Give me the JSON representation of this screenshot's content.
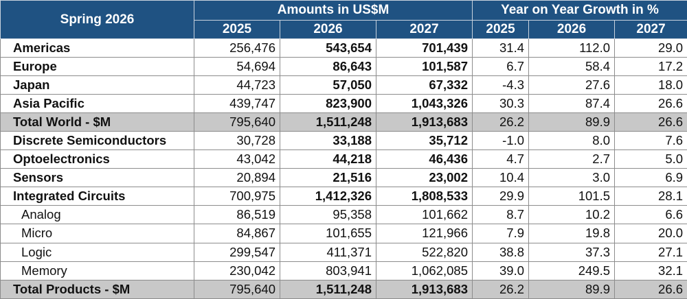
{
  "chart_data": {
    "type": "table",
    "title": "Spring 2026",
    "group_headers": {
      "amounts": "Amounts in US$M",
      "growth": "Year on Year Growth in %"
    },
    "columns": [
      "2025",
      "2026",
      "2027",
      "2025",
      "2026",
      "2027"
    ],
    "rows": [
      {
        "label": "Americas",
        "values": [
          "256,476",
          "543,654",
          "701,439",
          "31.4",
          "112.0",
          "29.0"
        ]
      },
      {
        "label": "Europe",
        "values": [
          "54,694",
          "86,643",
          "101,587",
          "6.7",
          "58.4",
          "17.2"
        ]
      },
      {
        "label": "Japan",
        "values": [
          "44,723",
          "57,050",
          "67,332",
          "-4.3",
          "27.6",
          "18.0"
        ]
      },
      {
        "label": "Asia Pacific",
        "values": [
          "439,747",
          "823,900",
          "1,043,326",
          "30.3",
          "87.4",
          "26.6"
        ]
      },
      {
        "label": "Total World - $M",
        "values": [
          "795,640",
          "1,511,248",
          "1,913,683",
          "26.2",
          "89.9",
          "26.6"
        ]
      },
      {
        "label": "Discrete Semiconductors",
        "values": [
          "30,728",
          "33,188",
          "35,712",
          "-1.0",
          "8.0",
          "7.6"
        ]
      },
      {
        "label": "Optoelectronics",
        "values": [
          "43,042",
          "44,218",
          "46,436",
          "4.7",
          "2.7",
          "5.0"
        ]
      },
      {
        "label": "Sensors",
        "values": [
          "20,894",
          "21,516",
          "23,002",
          "10.4",
          "3.0",
          "6.9"
        ]
      },
      {
        "label": "Integrated Circuits",
        "values": [
          "700,975",
          "1,412,326",
          "1,808,533",
          "29.9",
          "101.5",
          "28.1"
        ]
      },
      {
        "label": "Analog",
        "values": [
          "86,519",
          "95,358",
          "101,662",
          "8.7",
          "10.2",
          "6.6"
        ]
      },
      {
        "label": "Micro",
        "values": [
          "84,867",
          "101,655",
          "121,966",
          "7.9",
          "19.8",
          "20.0"
        ]
      },
      {
        "label": "Logic",
        "values": [
          "299,547",
          "411,371",
          "522,820",
          "38.8",
          "37.3",
          "27.1"
        ]
      },
      {
        "label": "Memory",
        "values": [
          "230,042",
          "803,941",
          "1,062,085",
          "39.0",
          "249.5",
          "32.1"
        ]
      },
      {
        "label": "Total Products - $M",
        "values": [
          "795,640",
          "1,511,248",
          "1,913,683",
          "26.2",
          "89.9",
          "26.6"
        ]
      }
    ]
  }
}
